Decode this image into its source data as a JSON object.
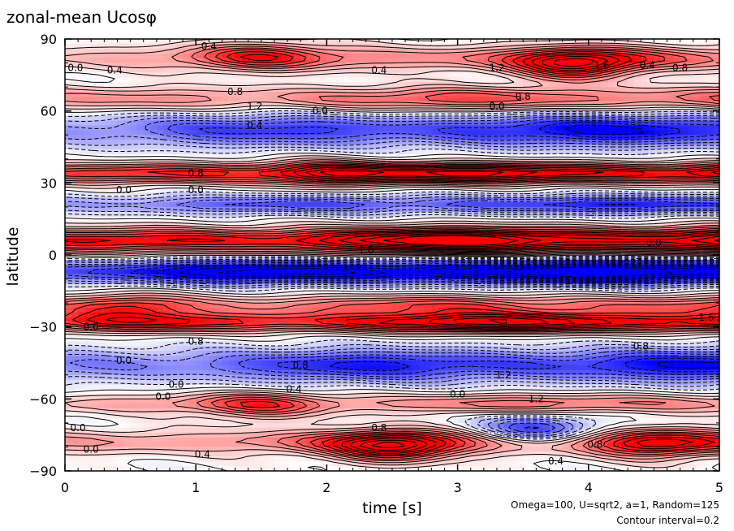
{
  "chart_data": {
    "type": "heatmap",
    "title": "zonal-mean Ucosφ",
    "xlabel": "time [s]",
    "ylabel": "latitude",
    "xlim": [
      0,
      5
    ],
    "ylim": [
      -90,
      90
    ],
    "x_ticks": [
      "0",
      "1",
      "2",
      "3",
      "4",
      "5"
    ],
    "y_ticks": [
      "90",
      "60",
      "30",
      "0",
      "−30",
      "−60",
      "−90"
    ],
    "y_tick_values": [
      90,
      60,
      30,
      0,
      -30,
      -60,
      -90
    ],
    "contour_interval": 0.2,
    "colors": {
      "positive": "#ff0000",
      "negative": "#0000ff",
      "zero": "#ffffff"
    },
    "notes": [
      "Omega=100, U=sqrt2, a=1, Random=125",
      "Contour interval=0.2"
    ],
    "bands": [
      {
        "lat": 82,
        "width": 5,
        "amp": 0.9
      },
      {
        "lat": 65,
        "width": 5,
        "amp": 1.0
      },
      {
        "lat": 52,
        "width": 7,
        "amp": -1.4
      },
      {
        "lat": 34,
        "width": 4,
        "amp": 2.0
      },
      {
        "lat": 21,
        "width": 4,
        "amp": -1.2
      },
      {
        "lat": 6,
        "width": 5,
        "amp": 2.4
      },
      {
        "lat": -7,
        "width": 5,
        "amp": -2.4
      },
      {
        "lat": -21,
        "width": 4,
        "amp": 1.0
      },
      {
        "lat": -28,
        "width": 4,
        "amp": 2.0
      },
      {
        "lat": -46,
        "width": 7,
        "amp": -1.4
      },
      {
        "lat": -62,
        "width": 4,
        "amp": 0.8
      },
      {
        "lat": -78,
        "width": 5,
        "amp": 1.0
      }
    ],
    "blobs": [
      {
        "t": 3.9,
        "lat": 79,
        "amp": 1.6
      },
      {
        "t": 1.5,
        "lat": 83,
        "amp": 0.8
      },
      {
        "t": 2.5,
        "lat": -80,
        "amp": 1.6
      },
      {
        "t": 3.6,
        "lat": -73,
        "amp": -1.4
      },
      {
        "t": 4.5,
        "lat": -79,
        "amp": 1.0
      },
      {
        "t": 1.5,
        "lat": -63,
        "amp": 0.8
      },
      {
        "t": 0.5,
        "lat": -22,
        "amp": 0.8
      },
      {
        "t": 2.0,
        "lat": 34,
        "amp": 0.8
      }
    ],
    "contour_labels": [
      {
        "text": "0.4",
        "t": 1.1,
        "lat": 87
      },
      {
        "text": "0.4",
        "t": 2.4,
        "lat": 77
      },
      {
        "text": "1.2",
        "t": 3.3,
        "lat": 78
      },
      {
        "text": "1.6",
        "t": 4.1,
        "lat": 79
      },
      {
        "text": "0.4",
        "t": 4.45,
        "lat": 79
      },
      {
        "text": "0.8",
        "t": 4.7,
        "lat": 78
      },
      {
        "text": "0.0",
        "t": 0.08,
        "lat": 78
      },
      {
        "text": "0.4",
        "t": 0.38,
        "lat": 77
      },
      {
        "text": "0.8",
        "t": 1.3,
        "lat": 68
      },
      {
        "text": "1.2",
        "t": 1.45,
        "lat": 62
      },
      {
        "text": "0.4",
        "t": 1.45,
        "lat": 54
      },
      {
        "text": "0.0",
        "t": 1.95,
        "lat": 60
      },
      {
        "text": "0.8",
        "t": 3.5,
        "lat": 66
      },
      {
        "text": "0.0",
        "t": 3.3,
        "lat": 62
      },
      {
        "text": "0.8",
        "t": 1.0,
        "lat": 34
      },
      {
        "text": "0.0",
        "t": 0.45,
        "lat": 27
      },
      {
        "text": "0.0",
        "t": 1.0,
        "lat": 27
      },
      {
        "text": "1.6",
        "t": 2.3,
        "lat": 2
      },
      {
        "text": "0.8",
        "t": 4.5,
        "lat": 5
      },
      {
        "text": "0.0",
        "t": 0.45,
        "lat": -44
      },
      {
        "text": "0.0",
        "t": 0.2,
        "lat": -30
      },
      {
        "text": "0.0",
        "t": 0.85,
        "lat": -54
      },
      {
        "text": "0.0",
        "t": 0.75,
        "lat": -59
      },
      {
        "text": "0.4",
        "t": 1.75,
        "lat": -56
      },
      {
        "text": "0.8",
        "t": 1.8,
        "lat": -46
      },
      {
        "text": "0.8",
        "t": 1.0,
        "lat": -36
      },
      {
        "text": "0.8",
        "t": 2.4,
        "lat": -72
      },
      {
        "text": "0.4",
        "t": 1.05,
        "lat": -83
      },
      {
        "text": "0.0",
        "t": 0.1,
        "lat": -72
      },
      {
        "text": "0.0",
        "t": 0.2,
        "lat": -81
      },
      {
        "text": "0.0",
        "t": 3.0,
        "lat": -58
      },
      {
        "text": "0.8",
        "t": 4.4,
        "lat": -38
      },
      {
        "text": "1.2",
        "t": 3.35,
        "lat": -50
      },
      {
        "text": "0.8",
        "t": 4.05,
        "lat": -79
      },
      {
        "text": "0.4",
        "t": 3.75,
        "lat": -86
      },
      {
        "text": "1.6",
        "t": 4.9,
        "lat": -26
      },
      {
        "text": "1.2",
        "t": 3.6,
        "lat": -60
      }
    ]
  }
}
